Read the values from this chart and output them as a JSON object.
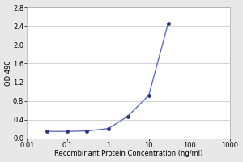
{
  "x": [
    0.031,
    0.1,
    0.3,
    1,
    3,
    10,
    30
  ],
  "y": [
    0.15,
    0.15,
    0.16,
    0.21,
    0.47,
    0.92,
    2.46
  ],
  "line_color": "#6070b8",
  "marker_color": "#2a3880",
  "marker_face": "#2a3880",
  "marker_style": "o",
  "marker_size": 3,
  "line_width": 1.0,
  "xlabel": "Recombinant Protein Concentration (ng/ml)",
  "ylabel": "OD 490",
  "xlim": [
    0.01,
    1000
  ],
  "ylim": [
    0,
    2.8
  ],
  "yticks": [
    0.0,
    0.4,
    0.8,
    1.2,
    1.6,
    2.0,
    2.4,
    2.8
  ],
  "ytick_labels": [
    "0.0",
    "0.4",
    "0.8",
    "1.2",
    "1.6",
    "2.0",
    "2.4",
    "2.8"
  ],
  "xtick_labels": [
    "0.01",
    "0.1",
    "1",
    "10",
    "100",
    "1000"
  ],
  "xtick_positions": [
    0.01,
    0.1,
    1,
    10,
    100,
    1000
  ],
  "figure_bg_color": "#e8e8e8",
  "plot_bg_color": "#ffffff",
  "grid_color": "#cccccc",
  "label_fontsize": 6,
  "tick_fontsize": 6,
  "ylabel_fontsize": 6
}
